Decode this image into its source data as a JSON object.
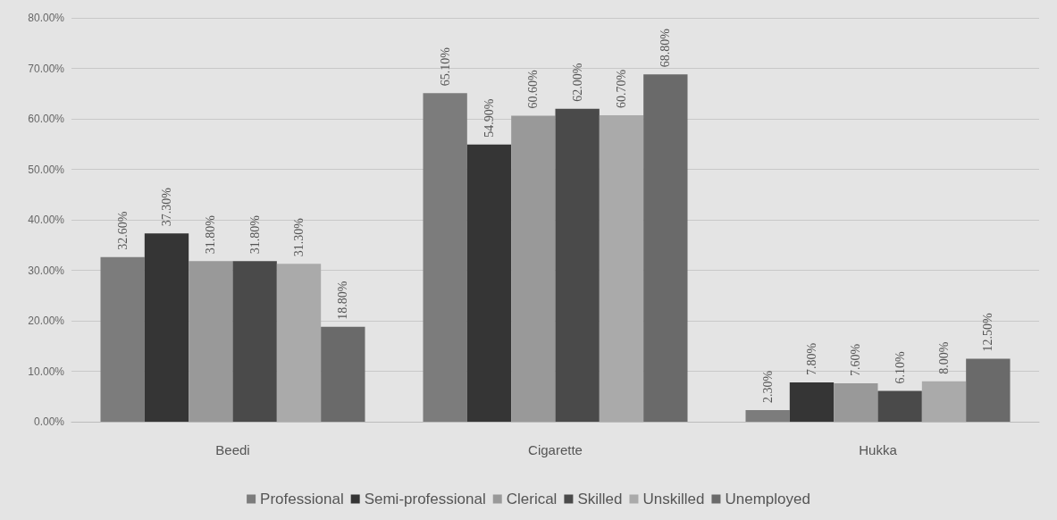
{
  "chart_data": {
    "type": "bar",
    "categories": [
      "Beedi",
      "Cigarette",
      "Hukka"
    ],
    "series": [
      {
        "name": "Professional",
        "color": "#7c7c7c",
        "values": [
          32.6,
          65.1,
          2.3
        ],
        "value_labels": [
          "32.60%",
          "65.10%",
          "2.30%"
        ]
      },
      {
        "name": "Semi-professional",
        "color": "#353535",
        "values": [
          37.3,
          54.9,
          7.8
        ],
        "value_labels": [
          "37.30%",
          "54.90%",
          "7.80%"
        ]
      },
      {
        "name": "Clerical",
        "color": "#999999",
        "values": [
          31.8,
          60.6,
          7.6
        ],
        "value_labels": [
          "31.80%",
          "60.60%",
          "7.60%"
        ]
      },
      {
        "name": "Skilled",
        "color": "#4a4a4a",
        "values": [
          31.8,
          62.0,
          6.1
        ],
        "value_labels": [
          "31.80%",
          "62.00%",
          "6.10%"
        ]
      },
      {
        "name": "Unskilled",
        "color": "#aaaaaa",
        "values": [
          31.3,
          60.7,
          8.0
        ],
        "value_labels": [
          "31.30%",
          "60.70%",
          "8.00%"
        ]
      },
      {
        "name": "Unemployed",
        "color": "#6a6a6a",
        "values": [
          18.8,
          68.8,
          12.5
        ],
        "value_labels": [
          "18.80%",
          "68.80%",
          "12.50%"
        ]
      }
    ],
    "ylim": [
      0,
      80
    ],
    "yticks": [
      {
        "value": 0,
        "label": "0.00%"
      },
      {
        "value": 10,
        "label": "10.00%"
      },
      {
        "value": 20,
        "label": "20.00%"
      },
      {
        "value": 30,
        "label": "30.00%"
      },
      {
        "value": 40,
        "label": "40.00%"
      },
      {
        "value": 50,
        "label": "50.00%"
      },
      {
        "value": 60,
        "label": "60.00%"
      },
      {
        "value": 70,
        "label": "70.00%"
      },
      {
        "value": 80,
        "label": "80.00%"
      }
    ],
    "grid": "y",
    "legend": "bottom"
  }
}
